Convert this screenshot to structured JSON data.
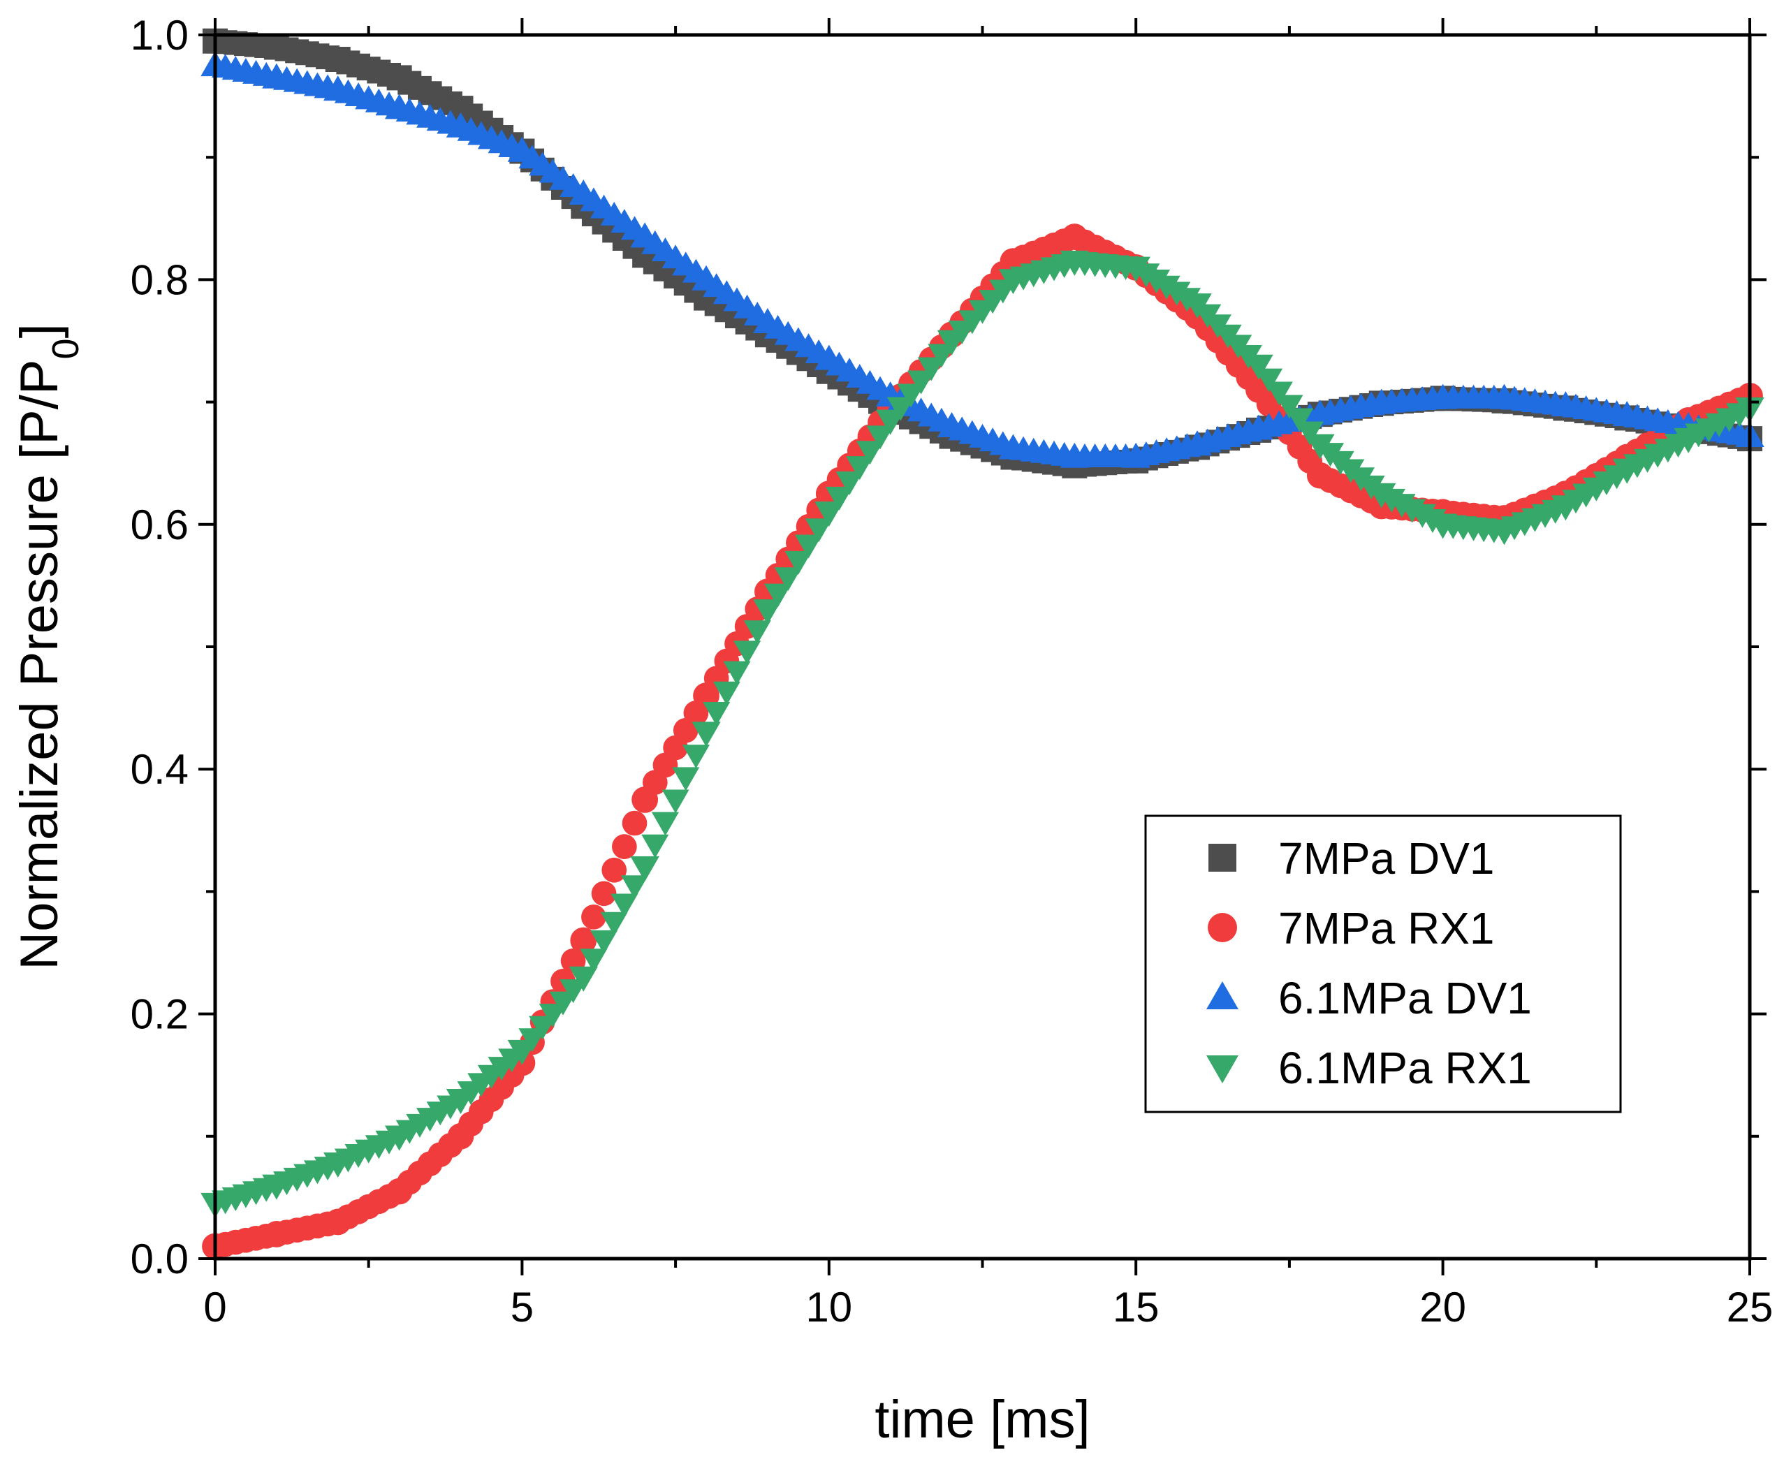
{
  "chart_data": {
    "type": "scatter",
    "xlabel": "time [ms]",
    "ylabel": {
      "main": "Normalized Pressure [P/P",
      "sub": "0",
      "close": "]"
    },
    "xlim": [
      0,
      25
    ],
    "ylim": [
      0,
      1.0
    ],
    "x_ticks": [
      0,
      5,
      10,
      15,
      20,
      25
    ],
    "x_tick_labels": [
      "0",
      "5",
      "10",
      "15",
      "20",
      "25"
    ],
    "y_ticks": [
      0,
      0.2,
      0.4,
      0.6,
      0.8,
      1.0
    ],
    "y_tick_labels": [
      "0.0",
      "0.2",
      "0.4",
      "0.6",
      "0.8",
      "1.0"
    ],
    "grid": false,
    "legend_position": "lower-right",
    "series": [
      {
        "name": "7MPa DV1",
        "marker": "square",
        "color": "#4d4d4d",
        "x": [
          0,
          1,
          2,
          3,
          4,
          5,
          6,
          7,
          8,
          9,
          10,
          11,
          12,
          13,
          14,
          15,
          16,
          17,
          18,
          19,
          20,
          21,
          22,
          23,
          24,
          25
        ],
        "y": [
          0.995,
          0.99,
          0.98,
          0.965,
          0.94,
          0.905,
          0.86,
          0.82,
          0.785,
          0.755,
          0.725,
          0.695,
          0.672,
          0.655,
          0.648,
          0.652,
          0.663,
          0.677,
          0.69,
          0.699,
          0.703,
          0.701,
          0.695,
          0.687,
          0.678,
          0.67
        ]
      },
      {
        "name": "7MPa RX1",
        "marker": "circle",
        "color": "#f03c3c",
        "x": [
          0,
          1,
          2,
          3,
          4,
          5,
          6,
          7,
          8,
          9,
          10,
          11,
          12,
          13,
          14,
          15,
          16,
          17,
          18,
          19,
          20,
          21,
          22,
          23,
          24,
          25
        ],
        "y": [
          0.01,
          0.02,
          0.03,
          0.055,
          0.1,
          0.16,
          0.26,
          0.375,
          0.46,
          0.545,
          0.625,
          0.695,
          0.755,
          0.815,
          0.835,
          0.81,
          0.77,
          0.71,
          0.64,
          0.615,
          0.61,
          0.605,
          0.625,
          0.655,
          0.685,
          0.705
        ]
      },
      {
        "name": "6.1MPa DV1",
        "marker": "triangle-up",
        "color": "#1f6de0",
        "x": [
          0,
          1,
          2,
          3,
          4,
          5,
          6,
          7,
          8,
          9,
          10,
          11,
          12,
          13,
          14,
          15,
          16,
          17,
          18,
          19,
          20,
          21,
          22,
          23,
          24,
          25
        ],
        "y": [
          0.975,
          0.965,
          0.955,
          0.94,
          0.925,
          0.905,
          0.87,
          0.835,
          0.8,
          0.765,
          0.735,
          0.705,
          0.68,
          0.662,
          0.655,
          0.655,
          0.665,
          0.678,
          0.69,
          0.699,
          0.703,
          0.703,
          0.697,
          0.689,
          0.68,
          0.672
        ]
      },
      {
        "name": "6.1MPa RX1",
        "marker": "triangle-down",
        "color": "#35a86a",
        "x": [
          0,
          1,
          2,
          3,
          4,
          5,
          6,
          7,
          8,
          9,
          10,
          11,
          12,
          13,
          14,
          15,
          16,
          17,
          18,
          19,
          20,
          21,
          22,
          23,
          24,
          25
        ],
        "y": [
          0.045,
          0.06,
          0.078,
          0.1,
          0.13,
          0.17,
          0.23,
          0.32,
          0.43,
          0.53,
          0.61,
          0.685,
          0.75,
          0.8,
          0.815,
          0.81,
          0.78,
          0.73,
          0.665,
          0.625,
          0.6,
          0.595,
          0.615,
          0.645,
          0.67,
          0.695
        ]
      }
    ]
  }
}
